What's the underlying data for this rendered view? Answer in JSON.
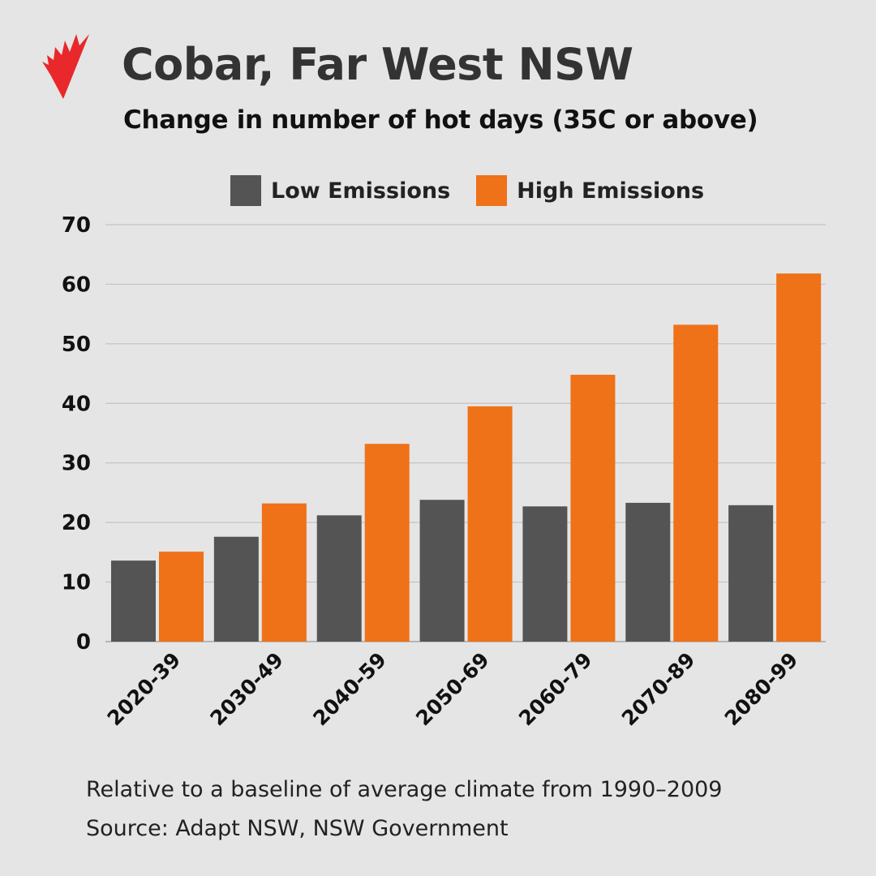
{
  "colors": {
    "low": "#545454",
    "high": "#ef7118",
    "logo": "#e8282b",
    "grid": "#bcbcbc"
  },
  "chart_data": {
    "type": "bar",
    "title": "Cobar, Far West NSW",
    "subtitle": "Change in number of hot days (35C or above)",
    "categories": [
      "2020-39",
      "2030-49",
      "2040-59",
      "2050-69",
      "2060-79",
      "2070-89",
      "2080-99"
    ],
    "series": [
      {
        "name": "Low Emissions",
        "values": [
          13.6,
          17.6,
          21.2,
          23.8,
          22.7,
          23.3,
          22.9
        ]
      },
      {
        "name": "High Emissions",
        "values": [
          15.1,
          23.2,
          33.2,
          39.5,
          44.8,
          53.2,
          61.8
        ]
      }
    ],
    "ylim": [
      0,
      70
    ],
    "yticks": [
      "0",
      "10",
      "20",
      "30",
      "40",
      "50",
      "60",
      "70"
    ],
    "grid": true,
    "legend": "top-center",
    "xlabel": "",
    "ylabel": ""
  },
  "footer": {
    "note": "Relative to a baseline of average climate from 1990–2009",
    "source": "Source: Adapt NSW, NSW Government"
  }
}
